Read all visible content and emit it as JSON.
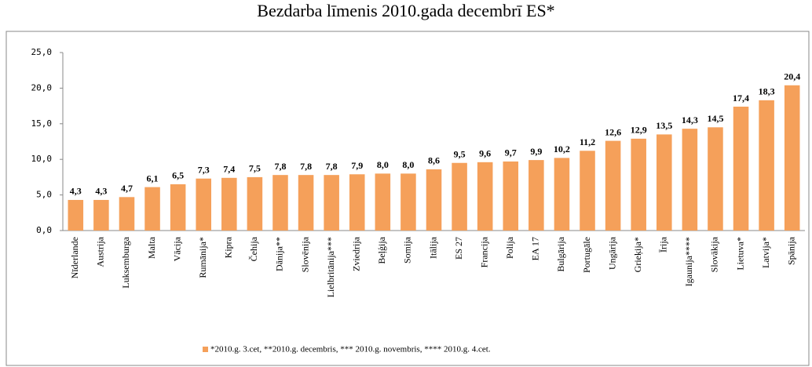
{
  "chart_data": {
    "type": "bar",
    "title": "Bezdarba līmenis 2010.gada decembrī ES*",
    "categories": [
      "Nīderlande",
      "Austrija",
      "Luksemburga",
      "Malta",
      "Vācija",
      "Rumānija*",
      "Kipra",
      "Čehija",
      "Dānija**",
      "Slovēnija",
      "Lielbritānija***",
      "Zviedrija",
      "Beļģija",
      "Somija",
      "Itālija",
      "ES 27",
      "Francija",
      "Polija",
      "EA 17",
      "Bulgārija",
      "Portugāle",
      "Ungārija",
      "Grieķija*",
      "Īrija",
      "Igaunija****",
      "Slovākija",
      "Lietuva*",
      "Latvija*",
      "Spānija"
    ],
    "values": [
      4.3,
      4.3,
      4.7,
      6.1,
      6.5,
      7.3,
      7.4,
      7.5,
      7.8,
      7.8,
      7.8,
      7.9,
      8.0,
      8.0,
      8.6,
      9.5,
      9.6,
      9.7,
      9.9,
      10.2,
      11.2,
      12.6,
      12.9,
      13.5,
      14.3,
      14.5,
      17.4,
      18.3,
      20.4
    ],
    "value_labels": [
      "4,3",
      "4,3",
      "4,7",
      "6,1",
      "6,5",
      "7,3",
      "7,4",
      "7,5",
      "7,8",
      "7,8",
      "7,8",
      "7,9",
      "8,0",
      "8,0",
      "8,6",
      "9,5",
      "9,6",
      "9,7",
      "9,9",
      "10,2",
      "11,2",
      "12,6",
      "12,9",
      "13,5",
      "14,3",
      "14,5",
      "17,4",
      "18,3",
      "20,4"
    ],
    "color": "#f5a05a",
    "series_name": "*2010.g. 3.cet, **2010.g. decembris, *** 2010.g. novembris, **** 2010.g. 4.cet.",
    "ylim": [
      0,
      25
    ],
    "yticks": [
      {
        "value": 0,
        "label": "0,0"
      },
      {
        "value": 5,
        "label": "5,0"
      },
      {
        "value": 10,
        "label": "10,0"
      },
      {
        "value": 15,
        "label": "15,0"
      },
      {
        "value": 20,
        "label": "20,0"
      },
      {
        "value": 25,
        "label": "25,0"
      }
    ]
  }
}
